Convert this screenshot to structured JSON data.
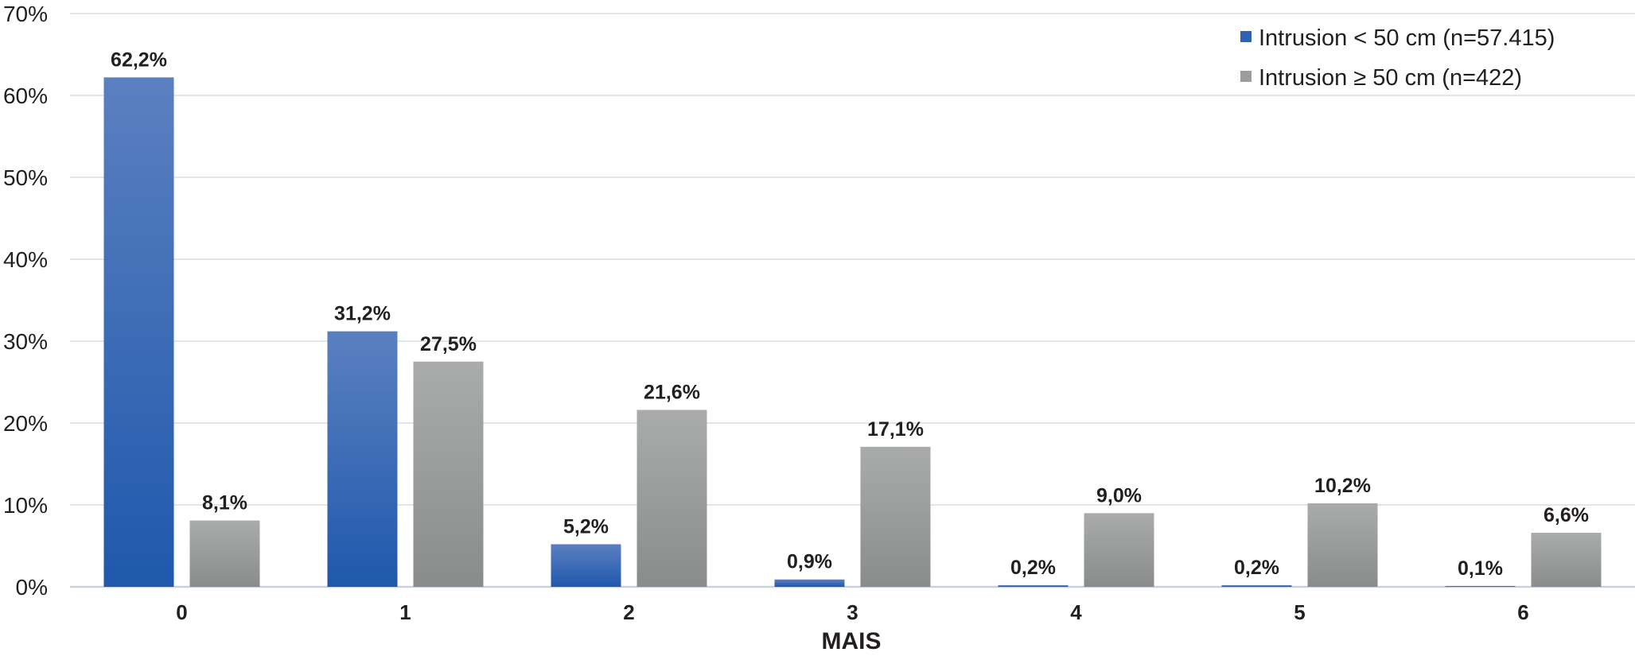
{
  "chart_data": {
    "type": "bar",
    "title": "",
    "xlabel": "MAIS",
    "ylabel": "",
    "categories": [
      "0",
      "1",
      "2",
      "3",
      "4",
      "5",
      "6"
    ],
    "series": [
      {
        "name": "Intrusion < 50 cm (n=57.415)",
        "values": [
          62.2,
          31.2,
          5.2,
          0.9,
          0.2,
          0.2,
          0.1
        ],
        "labels": [
          "62,2%",
          "31,2%",
          "5,2%",
          "0,9%",
          "0,2%",
          "0,2%",
          "0,1%"
        ],
        "color": "#2f62b0",
        "color_light": "#5b80c0",
        "color_dark": "#1f58ac"
      },
      {
        "name": "Intrusion ≥ 50 cm (n=422)",
        "values": [
          8.1,
          27.5,
          21.6,
          17.1,
          9.0,
          10.2,
          6.6
        ],
        "labels": [
          "8,1%",
          "27,5%",
          "21,6%",
          "17,1%",
          "9,0%",
          "10,2%",
          "6,6%"
        ],
        "color": "#9b9c9c",
        "color_light": "#aaabab",
        "color_dark": "#8a8c8c"
      }
    ],
    "ylim": [
      0,
      70
    ],
    "yticks": [
      0,
      10,
      20,
      30,
      40,
      50,
      60,
      70
    ],
    "ytick_labels": [
      "0%",
      "10%",
      "20%",
      "30%",
      "40%",
      "50%",
      "60%",
      "70%"
    ],
    "grid": true,
    "legend_position": "top-right",
    "gridline_color": "#d7dde4",
    "axis_color": "#c9d2dc"
  }
}
